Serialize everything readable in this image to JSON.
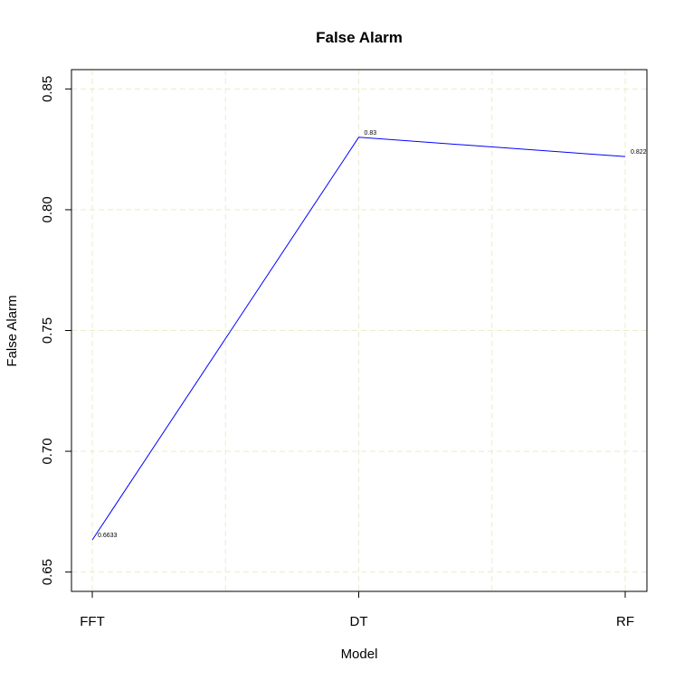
{
  "chart_data": {
    "type": "line",
    "title": "False Alarm",
    "xlabel": "Model",
    "ylabel": "False Alarm",
    "categories": [
      "FFT",
      "DT",
      "RF"
    ],
    "series": [
      {
        "values": [
          0.6633,
          0.83,
          0.822
        ],
        "color": "#0000ff"
      }
    ],
    "data_labels": [
      "0.6633",
      "0.83",
      "0.822"
    ],
    "ylim": [
      0.642,
      0.858
    ],
    "yticks": [
      0.65,
      0.7,
      0.75,
      0.8,
      0.85
    ],
    "ytick_labels": [
      "0.65",
      "0.70",
      "0.75",
      "0.80",
      "0.85"
    ],
    "grid": true,
    "grid_color": "#ebebcc",
    "legend": "none"
  }
}
